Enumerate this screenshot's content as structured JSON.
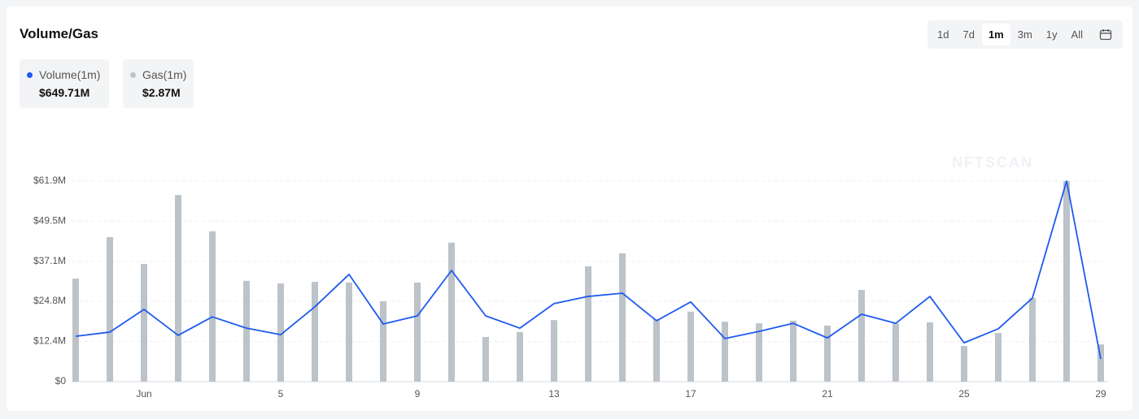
{
  "chart_data": {
    "type": "combo",
    "title": "Volume/Gas",
    "watermark": "NFTSCAN",
    "tabs": [
      "1d",
      "7d",
      "1m",
      "3m",
      "1y",
      "All"
    ],
    "active_tab_index": 2,
    "categories": [
      null,
      null,
      "Jun",
      null,
      null,
      null,
      "5",
      null,
      null,
      null,
      "9",
      null,
      null,
      null,
      "13",
      null,
      null,
      null,
      "17",
      null,
      null,
      null,
      "21",
      null,
      null,
      null,
      "25",
      null,
      null,
      null,
      "29"
    ],
    "series": [
      {
        "name": "Volume(1m)",
        "summary": "$649.71M",
        "type": "line",
        "color": "#1f5af0",
        "values": [
          14.0,
          15.3,
          22.3,
          14.3,
          20.0,
          16.5,
          14.5,
          23.1,
          33.1,
          17.8,
          20.3,
          34.3,
          20.3,
          16.5,
          24.1,
          26.3,
          27.3,
          18.8,
          24.6,
          13.3,
          15.5,
          18.0,
          13.5,
          20.8,
          18.0,
          26.3,
          12.0,
          16.3,
          25.8,
          61.9,
          7.0
        ]
      },
      {
        "name": "Gas(1m)",
        "summary": "$2.87M",
        "type": "bar",
        "color": "#bcc3c9",
        "values": [
          31.8,
          44.6,
          36.3,
          57.6,
          46.4,
          31.1,
          30.3,
          30.8,
          30.6,
          24.8,
          30.6,
          42.9,
          13.8,
          15.3,
          19.0,
          35.6,
          39.6,
          19.3,
          21.6,
          18.5,
          18.0,
          18.8,
          17.3,
          28.3,
          18.0,
          18.3,
          11.0,
          15.0,
          25.8,
          61.9,
          11.5
        ]
      }
    ],
    "ylim": [
      0,
      61.9
    ],
    "yticks": [
      {
        "value": 0,
        "label": "$0"
      },
      {
        "value": 12.4,
        "label": "$12.4M"
      },
      {
        "value": 24.8,
        "label": "$24.8M"
      },
      {
        "value": 37.1,
        "label": "$37.1M"
      },
      {
        "value": 49.5,
        "label": "$49.5M"
      },
      {
        "value": 61.9,
        "label": "$61.9M"
      }
    ],
    "grid": true
  }
}
